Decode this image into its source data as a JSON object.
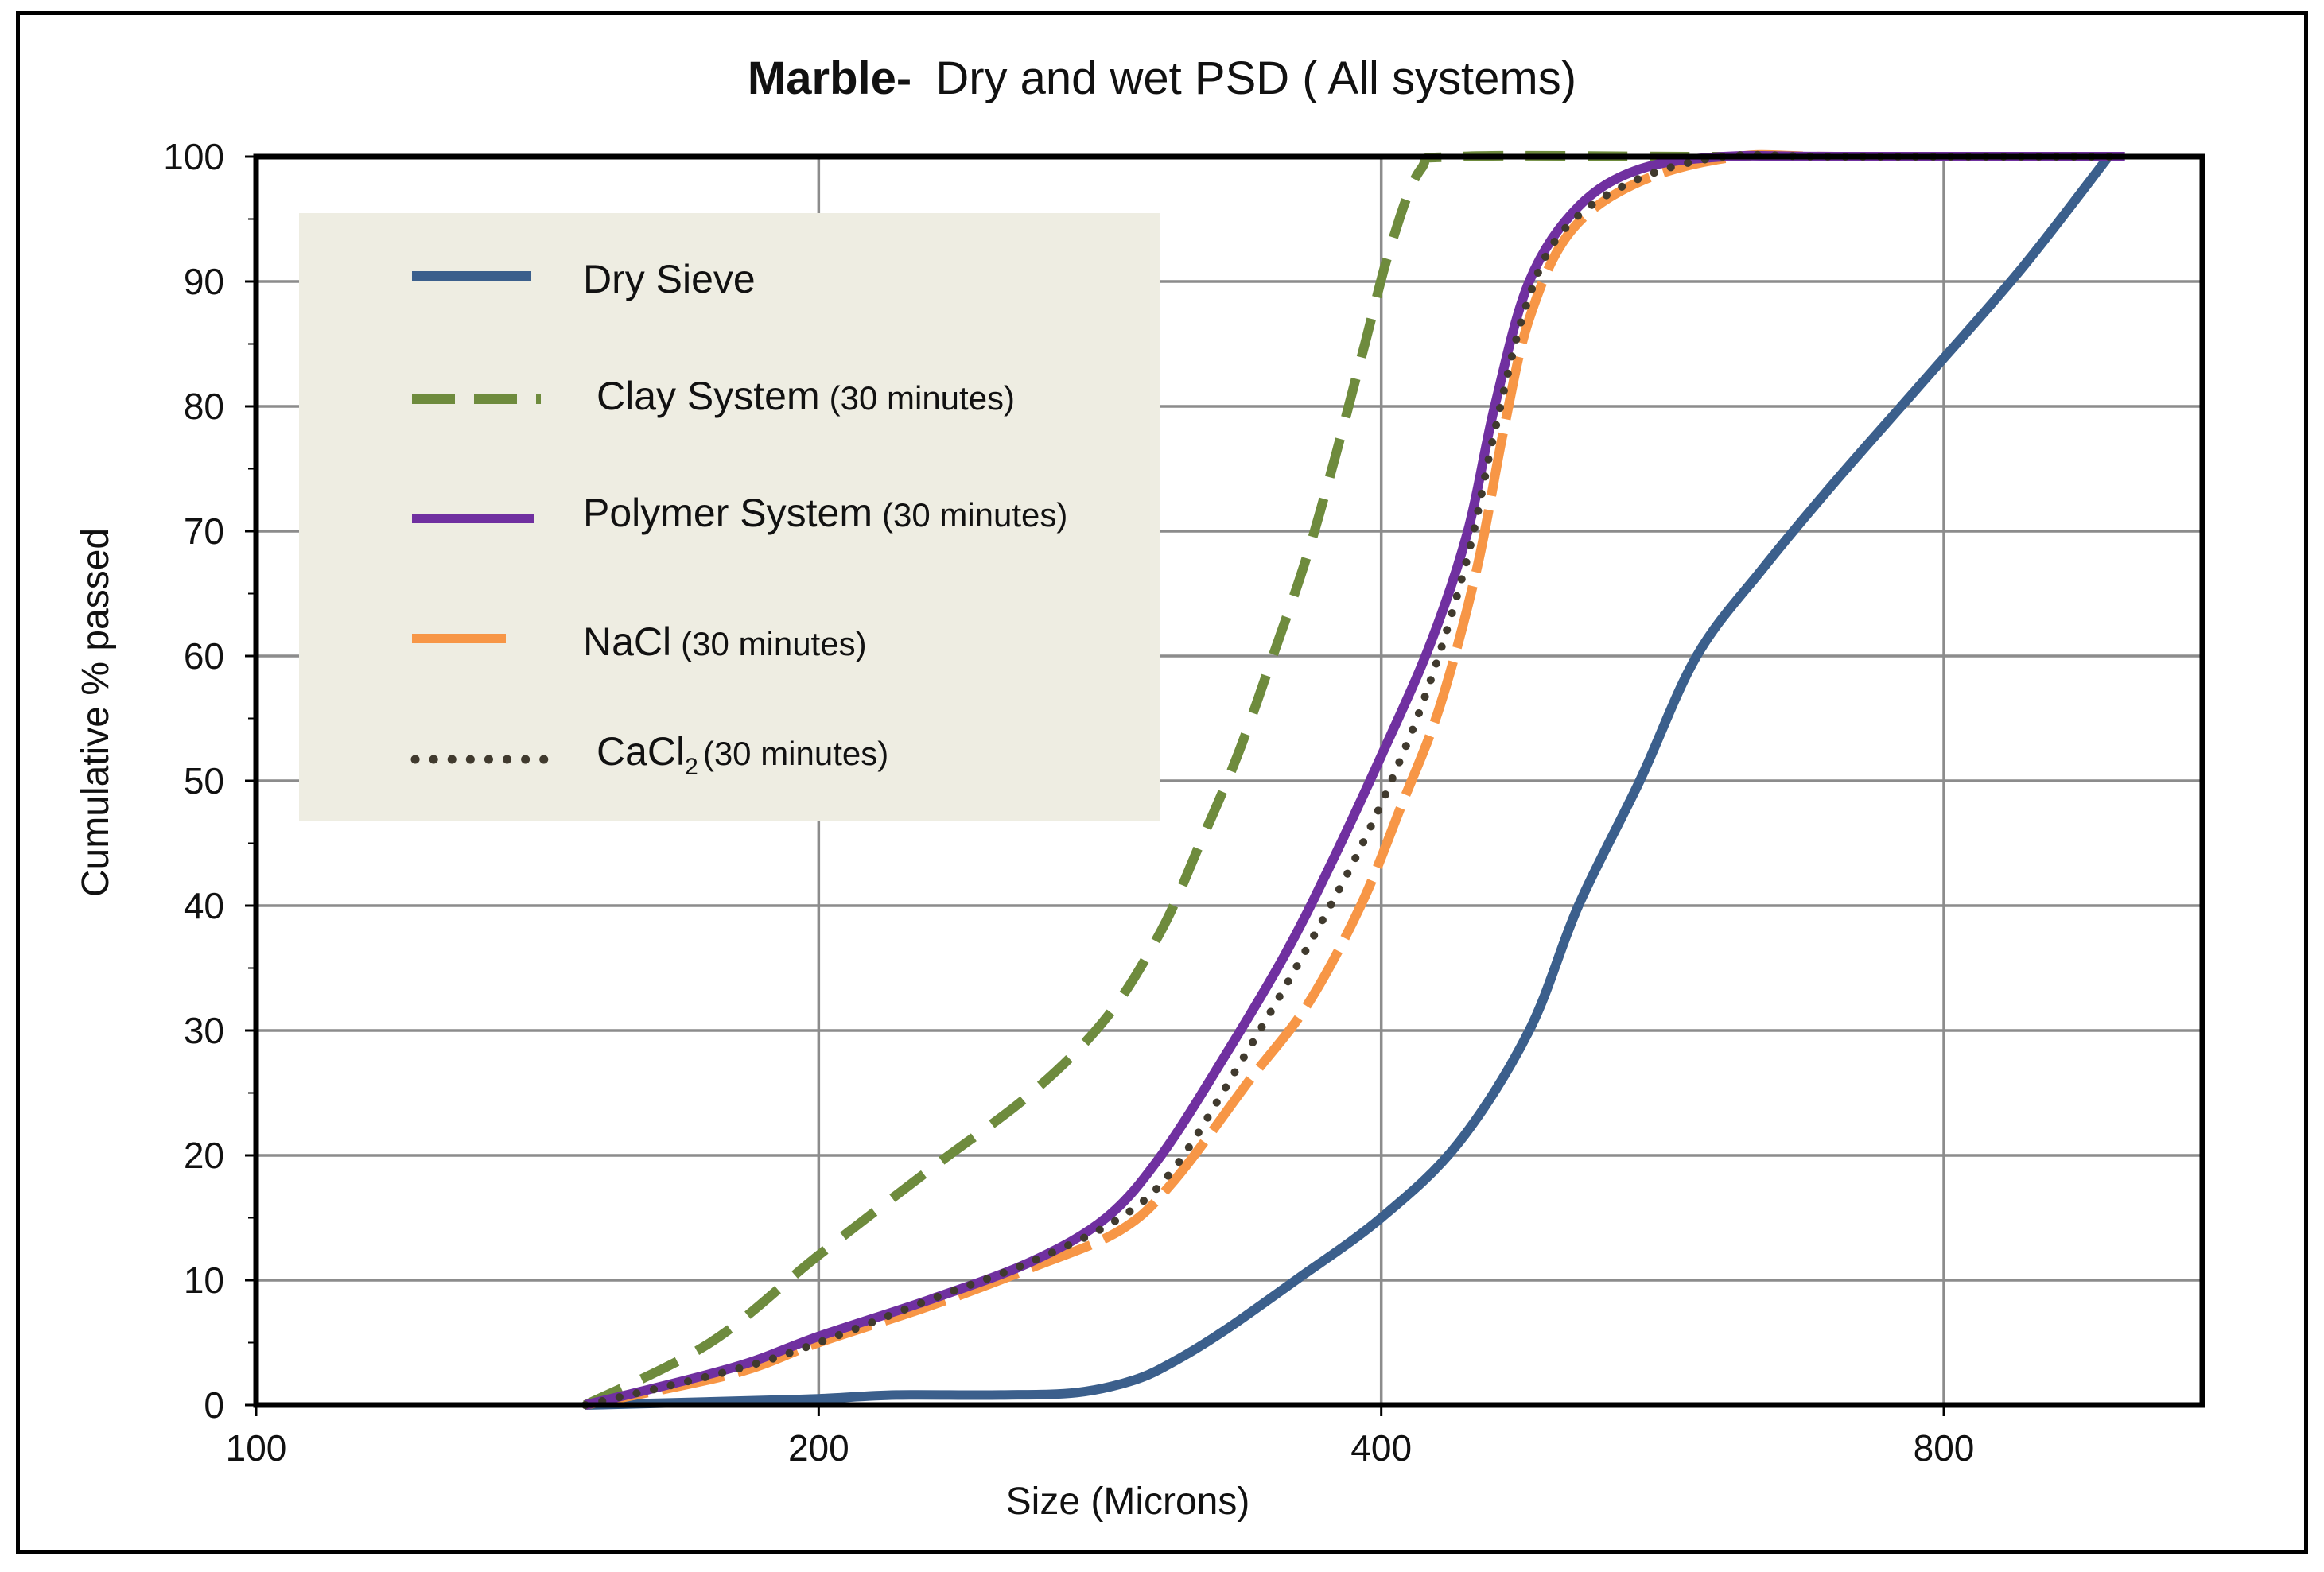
{
  "chart_data": {
    "type": "line",
    "title_bold": "Marble-",
    "title_rest": "Dry and wet PSD ( All systems)",
    "xlabel": "Size (Microns)",
    "ylabel": "Cumulative % passed",
    "x_scale": "log2",
    "xlim": [
      100,
      1100
    ],
    "ylim": [
      0,
      100
    ],
    "x_ticks": [
      100,
      200,
      400,
      800
    ],
    "x_tick_labels": [
      "100",
      "200",
      "400",
      "800"
    ],
    "y_ticks": [
      0,
      10,
      20,
      30,
      40,
      50,
      60,
      70,
      80,
      90,
      100
    ],
    "y_tick_labels": [
      "0",
      "10",
      "20",
      "30",
      "40",
      "50",
      "60",
      "70",
      "80",
      "90",
      "100"
    ],
    "grid": true,
    "legend_position": "top-left",
    "series": [
      {
        "name": "Dry Sieve",
        "color": "#3b5f8c",
        "style": "solid",
        "points": [
          [
            150,
            0
          ],
          [
            180,
            0.3
          ],
          [
            200,
            0.5
          ],
          [
            220,
            0.8
          ],
          [
            250,
            0.8
          ],
          [
            275,
            1
          ],
          [
            295,
            2
          ],
          [
            310,
            3.5
          ],
          [
            330,
            6
          ],
          [
            360,
            10
          ],
          [
            400,
            15
          ],
          [
            440,
            21
          ],
          [
            480,
            30
          ],
          [
            510,
            40
          ],
          [
            550,
            50
          ],
          [
            590,
            60
          ],
          [
            640,
            67
          ],
          [
            700,
            74
          ],
          [
            780,
            82
          ],
          [
            880,
            91
          ],
          [
            980,
            100
          ]
        ]
      },
      {
        "name": "Clay System",
        "name_suffix": "(30 minutes)",
        "color": "#6e8b3d",
        "style": "dashed",
        "points": [
          [
            150,
            0
          ],
          [
            175,
            5
          ],
          [
            200,
            12
          ],
          [
            230,
            19
          ],
          [
            260,
            25
          ],
          [
            285,
            31
          ],
          [
            305,
            38
          ],
          [
            320,
            45
          ],
          [
            335,
            52
          ],
          [
            350,
            60
          ],
          [
            365,
            68
          ],
          [
            378,
            76
          ],
          [
            392,
            85
          ],
          [
            405,
            93
          ],
          [
            420,
            99
          ],
          [
            440,
            100
          ],
          [
            600,
            100
          ],
          [
            1000,
            100
          ]
        ]
      },
      {
        "name": "Polymer System",
        "name_suffix": "(30 minutes)",
        "color": "#7030a0",
        "style": "solid",
        "points": [
          [
            150,
            0
          ],
          [
            180,
            3
          ],
          [
            200,
            5.5
          ],
          [
            230,
            8.5
          ],
          [
            260,
            11.5
          ],
          [
            285,
            15
          ],
          [
            305,
            20
          ],
          [
            330,
            28
          ],
          [
            355,
            36
          ],
          [
            375,
            43
          ],
          [
            400,
            52
          ],
          [
            425,
            61
          ],
          [
            445,
            70
          ],
          [
            460,
            80
          ],
          [
            480,
            90
          ],
          [
            510,
            96
          ],
          [
            550,
            99
          ],
          [
            610,
            100
          ],
          [
            700,
            100
          ],
          [
            1000,
            100
          ]
        ]
      },
      {
        "name": "NaCl",
        "name_suffix": "(30 minutes)",
        "color": "#f79646",
        "style": "longdash",
        "points": [
          [
            150,
            0
          ],
          [
            180,
            2.5
          ],
          [
            200,
            5
          ],
          [
            230,
            8
          ],
          [
            260,
            11
          ],
          [
            290,
            14
          ],
          [
            310,
            18
          ],
          [
            340,
            26
          ],
          [
            365,
            32
          ],
          [
            390,
            40
          ],
          [
            410,
            48
          ],
          [
            430,
            56
          ],
          [
            450,
            67
          ],
          [
            465,
            78
          ],
          [
            480,
            87
          ],
          [
            505,
            94
          ],
          [
            550,
            98
          ],
          [
            620,
            100
          ],
          [
            700,
            100
          ],
          [
            1000,
            100
          ]
        ]
      },
      {
        "name": "CaCl",
        "name_subscript": "2",
        "name_suffix": "(30 minutes)",
        "color": "#403a2e",
        "style": "dotted",
        "points": [
          [
            150,
            0
          ],
          [
            180,
            2.8
          ],
          [
            200,
            5
          ],
          [
            230,
            8.5
          ],
          [
            260,
            11.5
          ],
          [
            290,
            15
          ],
          [
            310,
            19
          ],
          [
            335,
            27
          ],
          [
            360,
            35
          ],
          [
            385,
            43
          ],
          [
            405,
            50
          ],
          [
            425,
            58
          ],
          [
            445,
            68
          ],
          [
            460,
            78
          ],
          [
            478,
            88
          ],
          [
            500,
            94
          ],
          [
            545,
            98
          ],
          [
            610,
            100
          ],
          [
            700,
            100
          ],
          [
            1000,
            100
          ]
        ]
      }
    ]
  }
}
